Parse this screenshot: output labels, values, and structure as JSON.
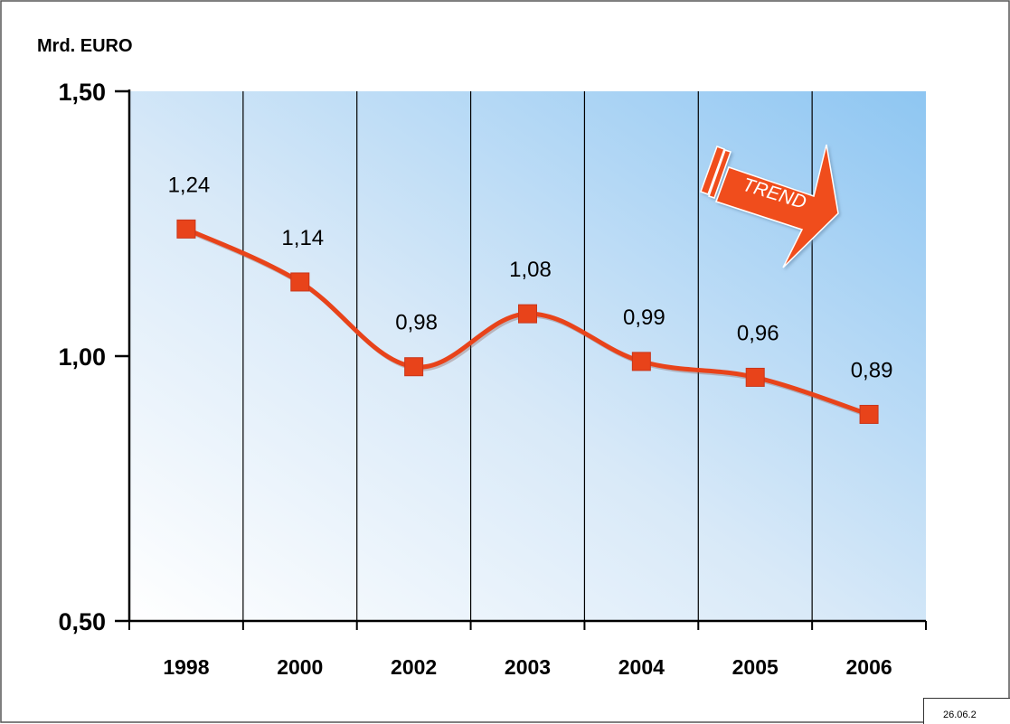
{
  "chart_data": {
    "type": "line",
    "ylabel": "Mrd. EURO",
    "categories": [
      "1998",
      "2000",
      "2002",
      "2003",
      "2004",
      "2005",
      "2006"
    ],
    "values": [
      1.24,
      1.14,
      0.98,
      1.08,
      0.99,
      0.96,
      0.89
    ],
    "value_labels": [
      "1,24",
      "1,14",
      "0,98",
      "1,08",
      "0,99",
      "0,96",
      "0,89"
    ],
    "ylim": [
      0.5,
      1.5
    ],
    "y_ticks": [
      0.5,
      1.0,
      1.5
    ],
    "y_tick_labels": [
      "0,50",
      "1,00",
      "1,50"
    ],
    "grid": "vertical",
    "line_color": "#e8431a",
    "annotation": "TREND",
    "annotation_color": "#f04e1f"
  },
  "footer": {
    "date_text": "26.06.2"
  }
}
